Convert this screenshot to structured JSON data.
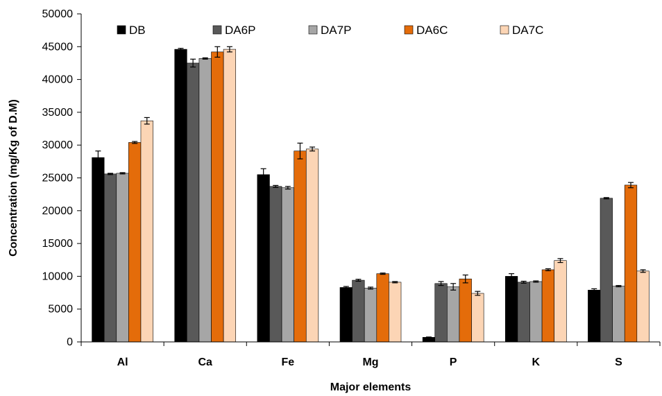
{
  "chart_data": {
    "type": "bar",
    "title": "",
    "xlabel": "Major elements",
    "ylabel": "Concentration (mg/Kg  of D.M)",
    "ylim": [
      0,
      50000
    ],
    "yticks": [
      0,
      5000,
      10000,
      15000,
      20000,
      25000,
      30000,
      35000,
      40000,
      45000,
      50000
    ],
    "grid": false,
    "legend_position": "top",
    "categories": [
      "Al",
      "Ca",
      "Fe",
      "Mg",
      "P",
      "K",
      "S"
    ],
    "series": [
      {
        "name": "DB",
        "color": "#000000",
        "values": [
          28100,
          44600,
          25500,
          8300,
          700,
          10000,
          7900
        ],
        "errors": [
          1000,
          150,
          900,
          150,
          50,
          400,
          200
        ]
      },
      {
        "name": "DA6P",
        "color": "#595959",
        "values": [
          25600,
          42500,
          23700,
          9400,
          8900,
          9100,
          21900
        ],
        "errors": [
          100,
          600,
          150,
          150,
          300,
          150,
          100
        ]
      },
      {
        "name": "DA7P",
        "color": "#a6a6a6",
        "values": [
          25700,
          43200,
          23500,
          8200,
          8400,
          9200,
          8500
        ],
        "errors": [
          100,
          100,
          200,
          150,
          500,
          100,
          100
        ]
      },
      {
        "name": "DA6C",
        "color": "#e46c0a",
        "values": [
          30400,
          44200,
          29100,
          10400,
          9600,
          11000,
          23900
        ],
        "errors": [
          150,
          800,
          1200,
          100,
          600,
          150,
          400
        ]
      },
      {
        "name": "DA7C",
        "color": "#fcd5b5",
        "values": [
          33700,
          44600,
          29400,
          9100,
          7400,
          12400,
          10800
        ],
        "errors": [
          500,
          400,
          300,
          100,
          300,
          300,
          200
        ]
      }
    ]
  }
}
